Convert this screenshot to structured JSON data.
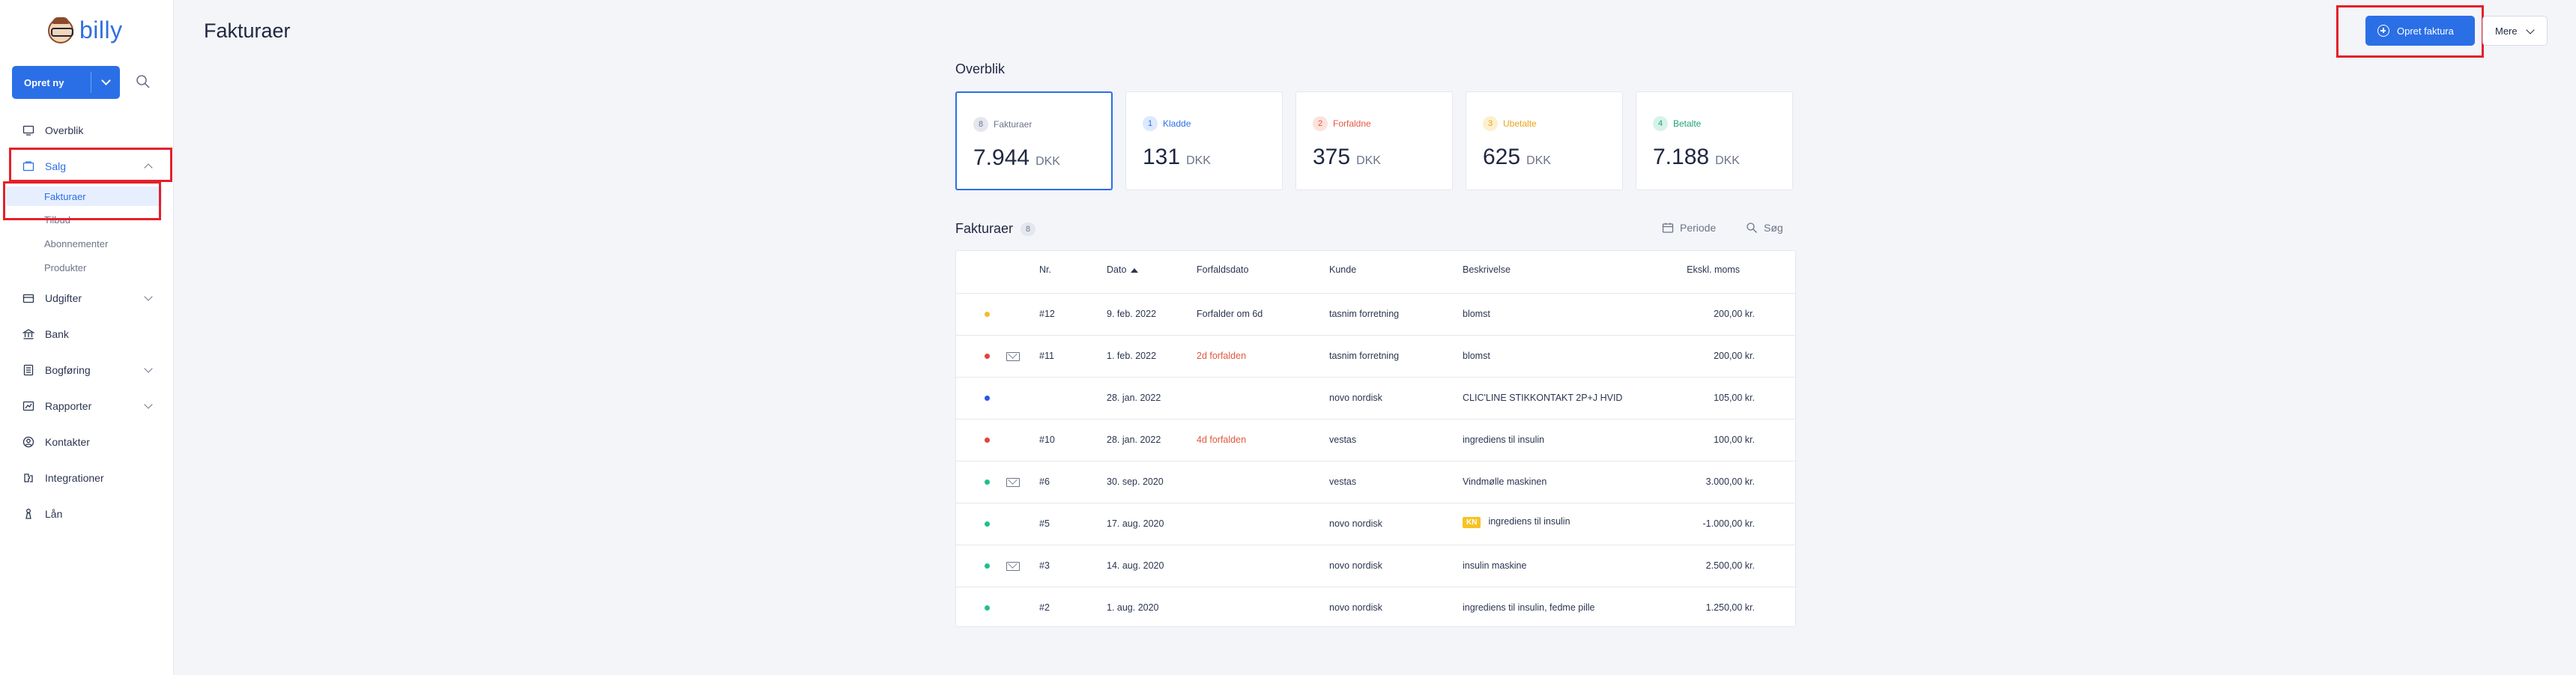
{
  "app": {
    "logo_text": "billy"
  },
  "sidebar": {
    "create_label": "Opret ny",
    "items": [
      {
        "label": "Overblik",
        "icon": "monitor-icon"
      },
      {
        "label": "Salg",
        "icon": "sales-icon"
      },
      {
        "label": "Udgifter",
        "icon": "expenses-icon"
      },
      {
        "label": "Bank",
        "icon": "bank-icon"
      },
      {
        "label": "Bogføring",
        "icon": "ledger-icon"
      },
      {
        "label": "Rapporter",
        "icon": "reports-icon"
      },
      {
        "label": "Kontakter",
        "icon": "contacts-icon"
      },
      {
        "label": "Integrationer",
        "icon": "integrations-icon"
      },
      {
        "label": "Lån",
        "icon": "loan-icon"
      }
    ],
    "sales_sub": [
      "Fakturaer",
      "Tilbud",
      "Abonnementer",
      "Produkter"
    ]
  },
  "header": {
    "title": "Fakturaer",
    "create_invoice": "Opret faktura",
    "more": "Mere"
  },
  "overview": {
    "title": "Overblik",
    "cards": [
      {
        "count": "8",
        "label": "Fakturaer",
        "amount": "7.944",
        "currency": "DKK",
        "color": "#6b7488",
        "badge_bg": "#e4e7ee"
      },
      {
        "count": "1",
        "label": "Kladde",
        "amount": "131",
        "currency": "DKK",
        "color": "#2b6fe7",
        "badge_bg": "#dde9ff"
      },
      {
        "count": "2",
        "label": "Forfaldne",
        "amount": "375",
        "currency": "DKK",
        "color": "#e2573e",
        "badge_bg": "#fde3dd"
      },
      {
        "count": "3",
        "label": "Ubetalte",
        "amount": "625",
        "currency": "DKK",
        "color": "#e8a317",
        "badge_bg": "#fdf0cf"
      },
      {
        "count": "4",
        "label": "Betalte",
        "amount": "7.188",
        "currency": "DKK",
        "color": "#1fa27a",
        "badge_bg": "#d7f3e9"
      }
    ]
  },
  "invoices": {
    "title": "Fakturaer",
    "count": "8",
    "period_label": "Periode",
    "search_label": "Søg",
    "columns": {
      "nr": "Nr.",
      "date": "Dato",
      "due": "Forfaldsdato",
      "customer": "Kunde",
      "description": "Beskrivelse",
      "amount": "Ekskl. moms"
    },
    "rows": [
      {
        "status_color": "#f6b932",
        "mail": false,
        "nr": "#12",
        "date": "9. feb. 2022",
        "due": "Forfalder om 6d",
        "due_overdue": false,
        "customer": "tasnim forretning",
        "tag": "",
        "description": "blomst",
        "amount": "200,00 kr."
      },
      {
        "status_color": "#e2433b",
        "mail": true,
        "nr": "#11",
        "date": "1. feb. 2022",
        "due": "2d forfalden",
        "due_overdue": true,
        "customer": "tasnim forretning",
        "tag": "",
        "description": "blomst",
        "amount": "200,00 kr."
      },
      {
        "status_color": "#2b57e0",
        "mail": false,
        "nr": "",
        "date": "28. jan. 2022",
        "due": "",
        "due_overdue": false,
        "customer": "novo nordisk",
        "tag": "",
        "description": "CLIC'LINE STIKKONTAKT 2P+J HVID",
        "amount": "105,00 kr."
      },
      {
        "status_color": "#e2433b",
        "mail": false,
        "nr": "#10",
        "date": "28. jan. 2022",
        "due": "4d forfalden",
        "due_overdue": true,
        "customer": "vestas",
        "tag": "",
        "description": "ingrediens til insulin",
        "amount": "100,00 kr."
      },
      {
        "status_color": "#1fbf8f",
        "mail": true,
        "nr": "#6",
        "date": "30. sep. 2020",
        "due": "",
        "due_overdue": false,
        "customer": "vestas",
        "tag": "",
        "description": "Vindmølle maskinen",
        "amount": "3.000,00 kr."
      },
      {
        "status_color": "#1fbf8f",
        "mail": false,
        "nr": "#5",
        "date": "17. aug. 2020",
        "due": "",
        "due_overdue": false,
        "customer": "novo nordisk",
        "tag": "KN",
        "description": "ingrediens til insulin",
        "amount": "-1.000,00 kr."
      },
      {
        "status_color": "#1fbf8f",
        "mail": true,
        "nr": "#3",
        "date": "14. aug. 2020",
        "due": "",
        "due_overdue": false,
        "customer": "novo nordisk",
        "tag": "",
        "description": "insulin maskine",
        "amount": "2.500,00 kr."
      },
      {
        "status_color": "#1fbf8f",
        "mail": false,
        "nr": "#2",
        "date": "1. aug. 2020",
        "due": "",
        "due_overdue": false,
        "customer": "novo nordisk",
        "tag": "",
        "description": "ingrediens til insulin, fedme pille",
        "amount": "1.250,00 kr."
      }
    ]
  }
}
